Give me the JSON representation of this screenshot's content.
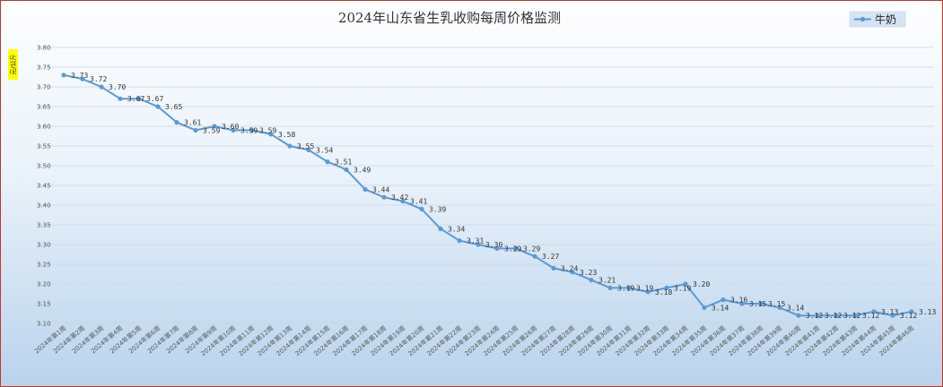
{
  "chart_data": {
    "type": "line",
    "title": "2024年山东省生乳收购每周价格监测",
    "ylabel": "元/公斤",
    "xlabel": "",
    "ylim": [
      3.1,
      3.8
    ],
    "yticks": [
      "3.10",
      "3.15",
      "3.20",
      "3.25",
      "3.30",
      "3.35",
      "3.40",
      "3.45",
      "3.50",
      "3.55",
      "3.60",
      "3.65",
      "3.70",
      "3.75",
      "3.80"
    ],
    "grid": true,
    "legend_position": "top-right",
    "line_color": "#5b9bd5",
    "categories": [
      "2024年第1周",
      "2024年第2周",
      "2024年第3周",
      "2024年第4周",
      "2024年第5周",
      "2024年第6周",
      "2024年第7周",
      "2024年第8周",
      "2024年第9周",
      "2024年第10周",
      "2024年第11周",
      "2024年第12周",
      "2024年第13周",
      "2024年第14周",
      "2024年第15周",
      "2024年第16周",
      "2024年第17周",
      "2024年第18周",
      "2024年第19周",
      "2024年第20周",
      "2024年第21周",
      "2024年第22周",
      "2024年第23周",
      "2024年第24周",
      "2024年第25周",
      "2024年第26周",
      "2024年第27周",
      "2024年第28周",
      "2024年第29周",
      "2024年第30周",
      "2024年第31周",
      "2024年第32周",
      "2024年第33周",
      "2024年第34周",
      "2024年第35周",
      "2024年第36周",
      "2024年第37周",
      "2024年第38周",
      "2024年第39周",
      "2024年第40周",
      "2024年第41周",
      "2024年第42周",
      "2024年第43周",
      "2024年第44周",
      "2024年第45周",
      "2024年第46周"
    ],
    "series": [
      {
        "name": "牛奶",
        "values": [
          3.73,
          3.72,
          3.7,
          3.67,
          3.67,
          3.65,
          3.61,
          3.59,
          3.6,
          3.59,
          3.59,
          3.58,
          3.55,
          3.54,
          3.51,
          3.49,
          3.44,
          3.42,
          3.41,
          3.39,
          3.34,
          3.31,
          3.3,
          3.29,
          3.29,
          3.27,
          3.24,
          3.23,
          3.21,
          3.19,
          3.19,
          3.18,
          3.19,
          3.2,
          3.14,
          3.16,
          3.15,
          3.15,
          3.14,
          3.12,
          3.12,
          3.12,
          3.12,
          3.13,
          3.12,
          3.13
        ]
      }
    ]
  }
}
